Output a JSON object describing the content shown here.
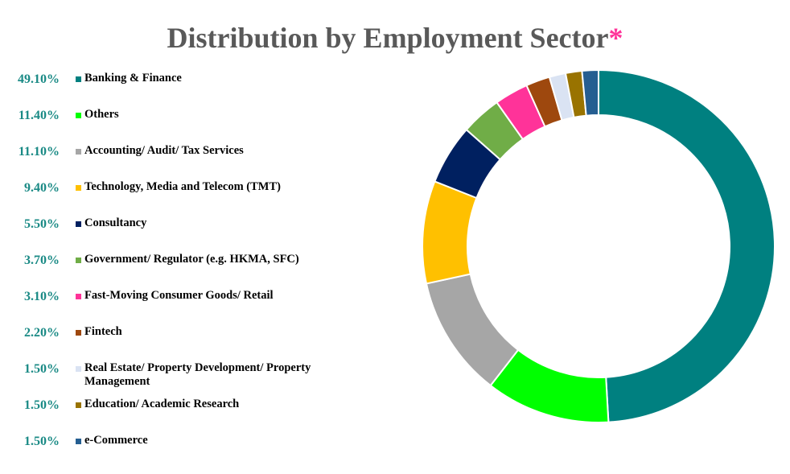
{
  "title": "Distribution by Employment Sector",
  "title_mark": "*",
  "colors": {
    "title": "#595959",
    "mark": "#ff3399",
    "pct": "#1a8a85"
  },
  "chart_data": {
    "type": "pie",
    "title": "Distribution by Employment Sector",
    "donut": true,
    "legend_position": "left",
    "slices": [
      {
        "label": "Banking & Finance",
        "value": 49.1,
        "display": "49.10%",
        "color": "#008080"
      },
      {
        "label": "Others",
        "value": 11.4,
        "display": "11.40%",
        "color": "#00ff00"
      },
      {
        "label": "Accounting/ Audit/ Tax Services",
        "value": 11.1,
        "display": "11.10%",
        "color": "#a6a6a6"
      },
      {
        "label": "Technology, Media and Telecom (TMT)",
        "value": 9.4,
        "display": "9.40%",
        "color": "#ffc000"
      },
      {
        "label": "Consultancy",
        "value": 5.5,
        "display": "5.50%",
        "color": "#002060"
      },
      {
        "label": "Government/ Regulator (e.g. HKMA, SFC)",
        "value": 3.7,
        "display": "3.70%",
        "color": "#70ad47"
      },
      {
        "label": "Fast-Moving Consumer Goods/ Retail",
        "value": 3.1,
        "display": "3.10%",
        "color": "#ff3399"
      },
      {
        "label": "Fintech",
        "value": 2.2,
        "display": "2.20%",
        "color": "#9e480e"
      },
      {
        "label": "Real Estate/ Property Development/ Property Management",
        "value": 1.5,
        "display": "1.50%",
        "color": "#dae3f3"
      },
      {
        "label": "Education/ Academic Research",
        "value": 1.5,
        "display": "1.50%",
        "color": "#997300"
      },
      {
        "label": "e-Commerce",
        "value": 1.5,
        "display": "1.50%",
        "color": "#255e91"
      }
    ]
  }
}
